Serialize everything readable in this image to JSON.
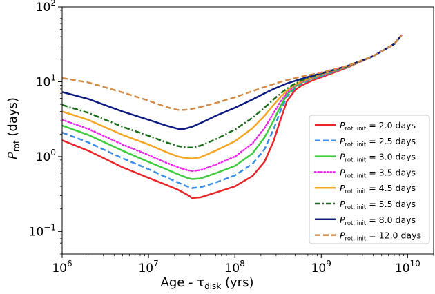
{
  "chart_data": {
    "type": "line",
    "xscale": "log",
    "yscale": "log",
    "xlim": [
      1000000,
      20000000000
    ],
    "ylim": [
      0.05,
      100
    ],
    "grid": false,
    "legend_position": "lower-right",
    "xlabel": "Age - τ",
    "xlabel_sub": "disk",
    "xlabel_tail": " (yrs)",
    "ylabel": "P",
    "ylabel_sub": "rot",
    "ylabel_tail": " (days)",
    "x_ticks": [
      {
        "value": 1000000,
        "base": "10",
        "exp": "6"
      },
      {
        "value": 10000000,
        "base": "10",
        "exp": "7"
      },
      {
        "value": 100000000,
        "base": "10",
        "exp": "8"
      },
      {
        "value": 1000000000,
        "base": "10",
        "exp": "9"
      },
      {
        "value": 10000000000,
        "base": "10",
        "exp": "10"
      }
    ],
    "y_ticks": [
      {
        "value": 0.1,
        "base": "10",
        "exp": "−1"
      },
      {
        "value": 1,
        "base": "10",
        "exp": "0"
      },
      {
        "value": 10,
        "base": "10",
        "exp": "1"
      },
      {
        "value": 100,
        "base": "10",
        "exp": "2"
      }
    ],
    "series": [
      {
        "name": "2.0 days",
        "color": "#e8262a",
        "dash": "solid",
        "points": [
          [
            1000000.0,
            1.65
          ],
          [
            2000000.0,
            1.2
          ],
          [
            5000000.0,
            0.72
          ],
          [
            10000000.0,
            0.52
          ],
          [
            16000000.0,
            0.42
          ],
          [
            22000000.0,
            0.36
          ],
          [
            28000000.0,
            0.31
          ],
          [
            32000000.0,
            0.28
          ],
          [
            40000000.0,
            0.285
          ],
          [
            60000000.0,
            0.33
          ],
          [
            100000000.0,
            0.4
          ],
          [
            160000000.0,
            0.55
          ],
          [
            220000000.0,
            0.85
          ],
          [
            280000000.0,
            1.6
          ],
          [
            340000000.0,
            3.2
          ],
          [
            400000000.0,
            5.5
          ],
          [
            500000000.0,
            7.8
          ],
          [
            600000000.0,
            9.0
          ],
          [
            800000000.0,
            10.5
          ],
          [
            1000000000.0,
            11.5
          ],
          [
            2000000000.0,
            15.5
          ],
          [
            4000000000.0,
            22
          ],
          [
            7000000000.0,
            32
          ],
          [
            8500000000.0,
            42
          ]
        ]
      },
      {
        "name": "2.5 days",
        "color": "#3a8ee6",
        "dash": "dashed",
        "points": [
          [
            1000000.0,
            2.1
          ],
          [
            2000000.0,
            1.55
          ],
          [
            5000000.0,
            0.95
          ],
          [
            10000000.0,
            0.68
          ],
          [
            16000000.0,
            0.53
          ],
          [
            22000000.0,
            0.45
          ],
          [
            28000000.0,
            0.4
          ],
          [
            32000000.0,
            0.38
          ],
          [
            40000000.0,
            0.39
          ],
          [
            60000000.0,
            0.45
          ],
          [
            100000000.0,
            0.56
          ],
          [
            160000000.0,
            0.8
          ],
          [
            220000000.0,
            1.25
          ],
          [
            280000000.0,
            2.3
          ],
          [
            340000000.0,
            4.2
          ],
          [
            400000000.0,
            6.3
          ],
          [
            500000000.0,
            8.3
          ],
          [
            600000000.0,
            9.5
          ],
          [
            800000000.0,
            11
          ],
          [
            1000000000.0,
            12
          ],
          [
            2000000000.0,
            15.7
          ],
          [
            4000000000.0,
            22
          ],
          [
            7000000000.0,
            32
          ],
          [
            8500000000.0,
            42
          ]
        ]
      },
      {
        "name": "3.0 days",
        "color": "#3dcc3d",
        "dash": "solid",
        "points": [
          [
            1000000.0,
            2.6
          ],
          [
            2000000.0,
            1.95
          ],
          [
            5000000.0,
            1.2
          ],
          [
            10000000.0,
            0.85
          ],
          [
            16000000.0,
            0.68
          ],
          [
            22000000.0,
            0.58
          ],
          [
            28000000.0,
            0.52
          ],
          [
            32000000.0,
            0.5
          ],
          [
            40000000.0,
            0.51
          ],
          [
            60000000.0,
            0.6
          ],
          [
            100000000.0,
            0.75
          ],
          [
            160000000.0,
            1.1
          ],
          [
            220000000.0,
            1.8
          ],
          [
            280000000.0,
            3.0
          ],
          [
            340000000.0,
            4.8
          ],
          [
            400000000.0,
            6.7
          ],
          [
            500000000.0,
            8.6
          ],
          [
            600000000.0,
            9.8
          ],
          [
            800000000.0,
            11.2
          ],
          [
            1000000000.0,
            12.3
          ],
          [
            2000000000.0,
            15.8
          ],
          [
            4000000000.0,
            22
          ],
          [
            7000000000.0,
            32
          ],
          [
            8500000000.0,
            42
          ]
        ]
      },
      {
        "name": "3.5 days",
        "color": "#ee22ee",
        "dash": "dotted",
        "points": [
          [
            1000000.0,
            3.1
          ],
          [
            2000000.0,
            2.35
          ],
          [
            5000000.0,
            1.45
          ],
          [
            10000000.0,
            1.05
          ],
          [
            16000000.0,
            0.83
          ],
          [
            22000000.0,
            0.72
          ],
          [
            28000000.0,
            0.66
          ],
          [
            32000000.0,
            0.64
          ],
          [
            40000000.0,
            0.66
          ],
          [
            60000000.0,
            0.78
          ],
          [
            100000000.0,
            1.0
          ],
          [
            160000000.0,
            1.5
          ],
          [
            220000000.0,
            2.4
          ],
          [
            280000000.0,
            3.8
          ],
          [
            340000000.0,
            5.5
          ],
          [
            400000000.0,
            7.1
          ],
          [
            500000000.0,
            8.9
          ],
          [
            600000000.0,
            10
          ],
          [
            800000000.0,
            11.4
          ],
          [
            1000000000.0,
            12.5
          ],
          [
            2000000000.0,
            15.9
          ],
          [
            4000000000.0,
            22
          ],
          [
            7000000000.0,
            32
          ],
          [
            8500000000.0,
            42
          ]
        ]
      },
      {
        "name": "4.5 days",
        "color": "#f5a623",
        "dash": "solid",
        "points": [
          [
            1000000.0,
            4.0
          ],
          [
            2000000.0,
            3.1
          ],
          [
            5000000.0,
            1.95
          ],
          [
            10000000.0,
            1.45
          ],
          [
            16000000.0,
            1.15
          ],
          [
            22000000.0,
            1.0
          ],
          [
            28000000.0,
            0.95
          ],
          [
            32000000.0,
            0.94
          ],
          [
            40000000.0,
            0.98
          ],
          [
            60000000.0,
            1.2
          ],
          [
            100000000.0,
            1.6
          ],
          [
            160000000.0,
            2.4
          ],
          [
            220000000.0,
            3.5
          ],
          [
            280000000.0,
            4.9
          ],
          [
            340000000.0,
            6.3
          ],
          [
            400000000.0,
            7.6
          ],
          [
            500000000.0,
            9.2
          ],
          [
            600000000.0,
            10.2
          ],
          [
            800000000.0,
            11.6
          ],
          [
            1000000000.0,
            12.7
          ],
          [
            2000000000.0,
            16
          ],
          [
            4000000000.0,
            22
          ],
          [
            7000000000.0,
            32
          ],
          [
            8500000000.0,
            42
          ]
        ]
      },
      {
        "name": "5.5 days",
        "color": "#1a6e1a",
        "dash": "dashdot",
        "points": [
          [
            1000000.0,
            4.9
          ],
          [
            2000000.0,
            3.85
          ],
          [
            5000000.0,
            2.5
          ],
          [
            10000000.0,
            1.9
          ],
          [
            16000000.0,
            1.55
          ],
          [
            22000000.0,
            1.38
          ],
          [
            28000000.0,
            1.32
          ],
          [
            32000000.0,
            1.32
          ],
          [
            40000000.0,
            1.4
          ],
          [
            60000000.0,
            1.7
          ],
          [
            100000000.0,
            2.3
          ],
          [
            160000000.0,
            3.3
          ],
          [
            220000000.0,
            4.5
          ],
          [
            280000000.0,
            5.8
          ],
          [
            340000000.0,
            7.0
          ],
          [
            400000000.0,
            8.1
          ],
          [
            500000000.0,
            9.5
          ],
          [
            600000000.0,
            10.5
          ],
          [
            800000000.0,
            11.8
          ],
          [
            1000000000.0,
            12.9
          ],
          [
            2000000000.0,
            16.1
          ],
          [
            4000000000.0,
            22
          ],
          [
            7000000000.0,
            32
          ],
          [
            8500000000.0,
            42
          ]
        ]
      },
      {
        "name": "8.0 days",
        "color": "#0d1a80",
        "dash": "solid",
        "points": [
          [
            1000000.0,
            7.3
          ],
          [
            2000000.0,
            5.9
          ],
          [
            5000000.0,
            4.0
          ],
          [
            10000000.0,
            3.1
          ],
          [
            16000000.0,
            2.6
          ],
          [
            22000000.0,
            2.35
          ],
          [
            26000000.0,
            2.35
          ],
          [
            32000000.0,
            2.5
          ],
          [
            40000000.0,
            2.8
          ],
          [
            60000000.0,
            3.5
          ],
          [
            100000000.0,
            4.5
          ],
          [
            160000000.0,
            5.8
          ],
          [
            220000000.0,
            7.0
          ],
          [
            280000000.0,
            8.0
          ],
          [
            340000000.0,
            8.8
          ],
          [
            400000000.0,
            9.5
          ],
          [
            500000000.0,
            10.3
          ],
          [
            600000000.0,
            11
          ],
          [
            800000000.0,
            12.1
          ],
          [
            1000000000.0,
            13
          ],
          [
            2000000000.0,
            16.2
          ],
          [
            4000000000.0,
            22
          ],
          [
            7000000000.0,
            32
          ],
          [
            8500000000.0,
            42
          ]
        ]
      },
      {
        "name": "12.0 days",
        "color": "#d28c46",
        "dash": "dashed",
        "points": [
          [
            1000000.0,
            11.2
          ],
          [
            2000000.0,
            9.8
          ],
          [
            5000000.0,
            7.2
          ],
          [
            10000000.0,
            5.6
          ],
          [
            16000000.0,
            4.6
          ],
          [
            22000000.0,
            4.2
          ],
          [
            26000000.0,
            4.2
          ],
          [
            32000000.0,
            4.35
          ],
          [
            40000000.0,
            4.6
          ],
          [
            60000000.0,
            5.2
          ],
          [
            100000000.0,
            6.2
          ],
          [
            160000000.0,
            7.5
          ],
          [
            220000000.0,
            8.5
          ],
          [
            280000000.0,
            9.3
          ],
          [
            340000000.0,
            10
          ],
          [
            400000000.0,
            10.5
          ],
          [
            500000000.0,
            11.2
          ],
          [
            600000000.0,
            11.8
          ],
          [
            800000000.0,
            12.6
          ],
          [
            1000000000.0,
            13.3
          ],
          [
            2000000000.0,
            16.3
          ],
          [
            4000000000.0,
            22
          ],
          [
            7000000000.0,
            32
          ],
          [
            8500000000.0,
            42
          ]
        ]
      }
    ],
    "legend": {
      "symbol": "P",
      "subscript": "rot, init",
      "entries": [
        "= 2.0 days",
        "= 2.5 days",
        "= 3.0 days",
        "= 3.5 days",
        "= 4.5 days",
        "= 5.5 days",
        "= 8.0 days",
        "= 12.0 days"
      ]
    }
  }
}
